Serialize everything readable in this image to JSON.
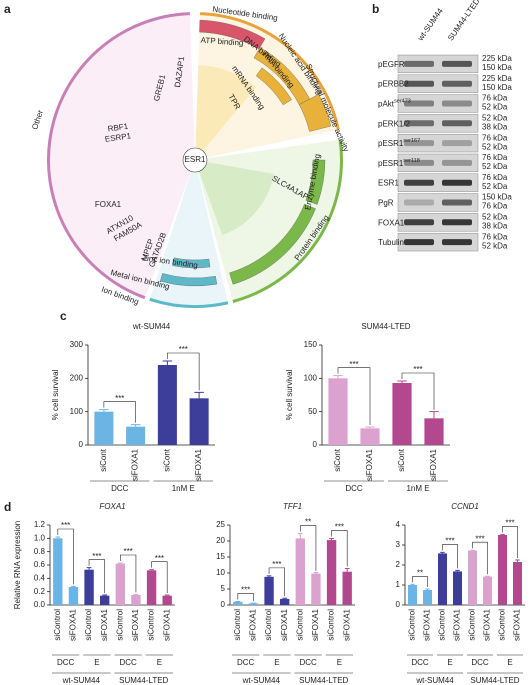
{
  "panels": {
    "a": {
      "letter": "a",
      "labels": [
        "Nucleotide binding",
        "ATP binding",
        "DNA binding",
        "RNA binding",
        "Nucleic acid binding",
        "Structural molecule activity",
        "mRNA binding",
        "Enzyme binding",
        "Protein binding",
        "Ion binding",
        "Metal ion binding",
        "Zinc ion binding",
        "Other",
        "ESR1",
        "DAZAP1",
        "GREB1",
        "RBF1",
        "ESRP1",
        "FOXA1",
        "ATXN10",
        "FAM50A",
        "MPEP",
        "GATAD2B",
        "SLC4A1AP",
        "TPR"
      ]
    },
    "b": {
      "letter": "b",
      "columns": [
        "wt-SUM44",
        "SUM44-LTED"
      ],
      "rows": [
        {
          "name": "pEGFR",
          "sup": "",
          "kda": [
            "225 kDa",
            "150 kDa"
          ]
        },
        {
          "name": "pERBB2",
          "sup": "",
          "kda": [
            "225 kDa",
            "150 kDa"
          ]
        },
        {
          "name": "pAkt",
          "sup": "ser473",
          "kda": [
            "76 kDa",
            "52 kDa"
          ]
        },
        {
          "name": "pERK1/2",
          "sup": "",
          "kda": [
            "52 kDa",
            "38 kDa"
          ]
        },
        {
          "name": "pESR1",
          "sup": "ser167",
          "kda": [
            "76 kDa",
            "52 kDa"
          ]
        },
        {
          "name": "pESR1",
          "sup": "ser118",
          "kda": [
            "76 kDa",
            "52 kDa"
          ]
        },
        {
          "name": "ESR1",
          "sup": "",
          "kda": [
            "76 kDa",
            "52 kDa"
          ]
        },
        {
          "name": "PgR",
          "sup": "",
          "kda": [
            "150 kDa",
            "76 kDa"
          ]
        },
        {
          "name": "FOXA1",
          "sup": "",
          "kda": [
            "52 kDa",
            "38 kDa"
          ]
        },
        {
          "name": "Tubulin",
          "sup": "",
          "kda": [
            "76 kDa",
            "52 kDa"
          ]
        }
      ]
    },
    "c": {
      "letter": "c"
    },
    "d": {
      "letter": "d"
    }
  },
  "chart_data": [
    {
      "type": "bar",
      "title": "wt-SUM44",
      "title_style": "normal",
      "ylabel": "% cell survival",
      "categories": [
        "siCont",
        "siFOXA1",
        "siCont",
        "siFOXA1"
      ],
      "values": [
        100,
        55,
        240,
        140
      ],
      "errors": [
        6,
        6,
        12,
        18
      ],
      "colors": [
        "#6cb4e4",
        "#6cb4e4",
        "#3d3d9a",
        "#3d3d9a"
      ],
      "ylim": [
        0,
        300
      ],
      "yticks": [
        0,
        100,
        200,
        300
      ],
      "groups": [
        "DCC",
        "1nM E"
      ],
      "super_groups": [],
      "significance": [
        "***",
        "***"
      ]
    },
    {
      "type": "bar",
      "title": "SUM44-LTED",
      "title_style": "normal",
      "ylabel": "% cell survival",
      "categories": [
        "siCont",
        "siFOXA1",
        "siCont",
        "siFOXA1"
      ],
      "values": [
        100,
        25,
        93,
        40
      ],
      "errors": [
        4,
        2,
        3,
        10
      ],
      "colors": [
        "#dba2cf",
        "#dba2cf",
        "#b2498f",
        "#b2498f"
      ],
      "ylim": [
        0,
        150
      ],
      "yticks": [
        0,
        50,
        100,
        150
      ],
      "groups": [
        "DCC",
        "1nM E"
      ],
      "super_groups": [],
      "significance": [
        "***",
        "***"
      ]
    },
    {
      "type": "bar",
      "title": "FOXA1",
      "title_style": "italic",
      "ylabel": "Relative RNA expression",
      "categories": [
        "siControl",
        "siFOXA1",
        "siControl",
        "siFOXA1",
        "siControl",
        "siFOXA1",
        "siControl",
        "siFOXA1"
      ],
      "values": [
        1.0,
        0.27,
        0.53,
        0.14,
        0.62,
        0.15,
        0.52,
        0.14
      ],
      "errors": [
        0.02,
        0.01,
        0.03,
        0.01,
        0.01,
        0.01,
        0.01,
        0.01
      ],
      "colors": [
        "#6cb4e4",
        "#6cb4e4",
        "#3d3d9a",
        "#3d3d9a",
        "#dba2cf",
        "#dba2cf",
        "#b2498f",
        "#b2498f"
      ],
      "ylim": [
        0,
        1.2
      ],
      "yticks": [
        {
          "value": 0,
          "label": "0.0"
        },
        0.2,
        0.4,
        0.6,
        0.8,
        {
          "value": 1,
          "label": "1.0"
        },
        1.2
      ],
      "groups": [
        "DCC",
        "E",
        "DCC",
        "E"
      ],
      "super_groups": [
        "wt-SUM44",
        "SUM44-LTED"
      ],
      "significance": [
        "***",
        "***",
        "***",
        "***"
      ]
    },
    {
      "type": "bar",
      "title": "TFF1",
      "title_style": "italic",
      "ylabel": "",
      "categories": [
        "siControl",
        "siFOXA1",
        "siControl",
        "siFOXA1",
        "siControl",
        "siFOXA1",
        "siControl",
        "siFOXA1"
      ],
      "values": [
        1.0,
        0.5,
        8.8,
        1.9,
        20.8,
        9.8,
        20.3,
        10.4
      ],
      "errors": [
        0.1,
        0.1,
        0.3,
        0.2,
        1.5,
        0.3,
        0.5,
        1.0
      ],
      "colors": [
        "#6cb4e4",
        "#6cb4e4",
        "#3d3d9a",
        "#3d3d9a",
        "#dba2cf",
        "#dba2cf",
        "#b2498f",
        "#b2498f"
      ],
      "ylim": [
        0,
        25
      ],
      "yticks": [
        0,
        5,
        10,
        15,
        20,
        25
      ],
      "groups": [
        "DCC",
        "E",
        "DCC",
        "E"
      ],
      "super_groups": [
        "wt-SUM44",
        "SUM44-LTED"
      ],
      "significance": [
        "***",
        "***",
        "**",
        "***"
      ]
    },
    {
      "type": "bar",
      "title": "CCND1",
      "title_style": "italic",
      "ylabel": "",
      "categories": [
        "siControl",
        "siFOXA1",
        "siControl",
        "siFOXA1",
        "siControl",
        "siFOXA1",
        "siControl",
        "siFOXA1"
      ],
      "values": [
        1.0,
        0.75,
        2.58,
        1.68,
        2.72,
        1.42,
        3.5,
        2.15
      ],
      "errors": [
        0.03,
        0.05,
        0.05,
        0.05,
        0.02,
        0.02,
        0.03,
        0.1
      ],
      "colors": [
        "#6cb4e4",
        "#6cb4e4",
        "#3d3d9a",
        "#3d3d9a",
        "#dba2cf",
        "#dba2cf",
        "#b2498f",
        "#b2498f"
      ],
      "ylim": [
        0,
        4
      ],
      "yticks": [
        0,
        1,
        2,
        3,
        4
      ],
      "groups": [
        "DCC",
        "E",
        "DCC",
        "E"
      ],
      "super_groups": [
        "wt-SUM44",
        "SUM44-LTED"
      ],
      "significance": [
        "**",
        "***",
        "***",
        "***"
      ]
    }
  ]
}
